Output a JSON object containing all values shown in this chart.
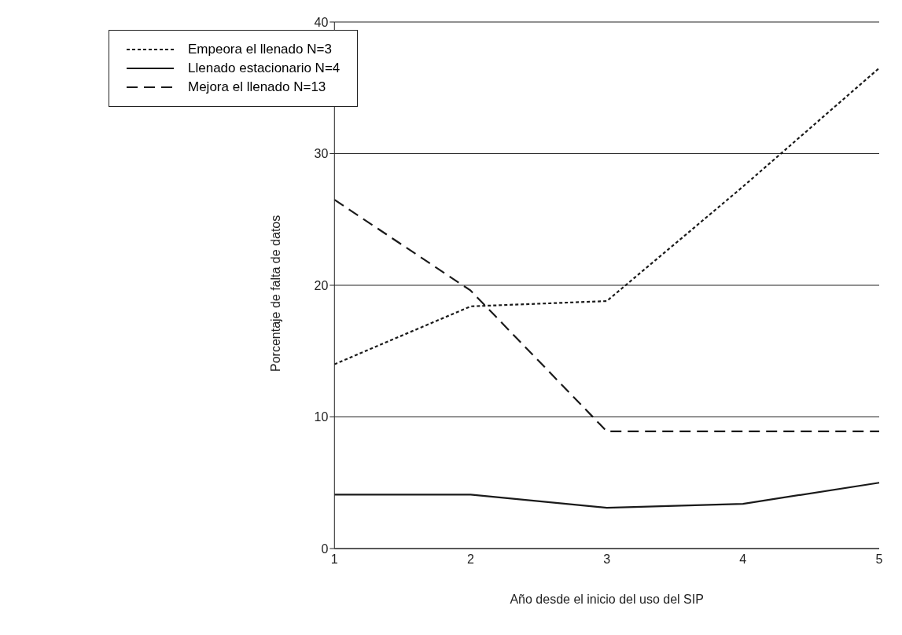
{
  "chart_data": {
    "type": "line",
    "xlabel": "Año desde el inicio del uso del SIP",
    "ylabel": "Porcentaje de falta de datos",
    "categories": [
      "1",
      "2",
      "3",
      "4",
      "5"
    ],
    "series": [
      {
        "name": "Empeora el llenado N=3",
        "color": "#1a1a1a",
        "line_style": "dotted",
        "values": [
          14,
          18.4,
          18.8,
          27.5,
          36.5
        ]
      },
      {
        "name": "Llenado estacionario N=4",
        "color": "#1a1a1a",
        "line_style": "solid",
        "values": [
          4.1,
          4.1,
          3.1,
          3.4,
          5
        ]
      },
      {
        "name": "Mejora el llenado N=13",
        "color": "#1a1a1a",
        "line_style": "dashed",
        "values": [
          26.5,
          19.6,
          8.9,
          8.9,
          8.9
        ]
      }
    ],
    "ylim": [
      0,
      40
    ],
    "yticks": [
      0,
      10,
      20,
      30,
      40
    ],
    "grid": "y",
    "legend": "top left",
    "marker": "none"
  }
}
